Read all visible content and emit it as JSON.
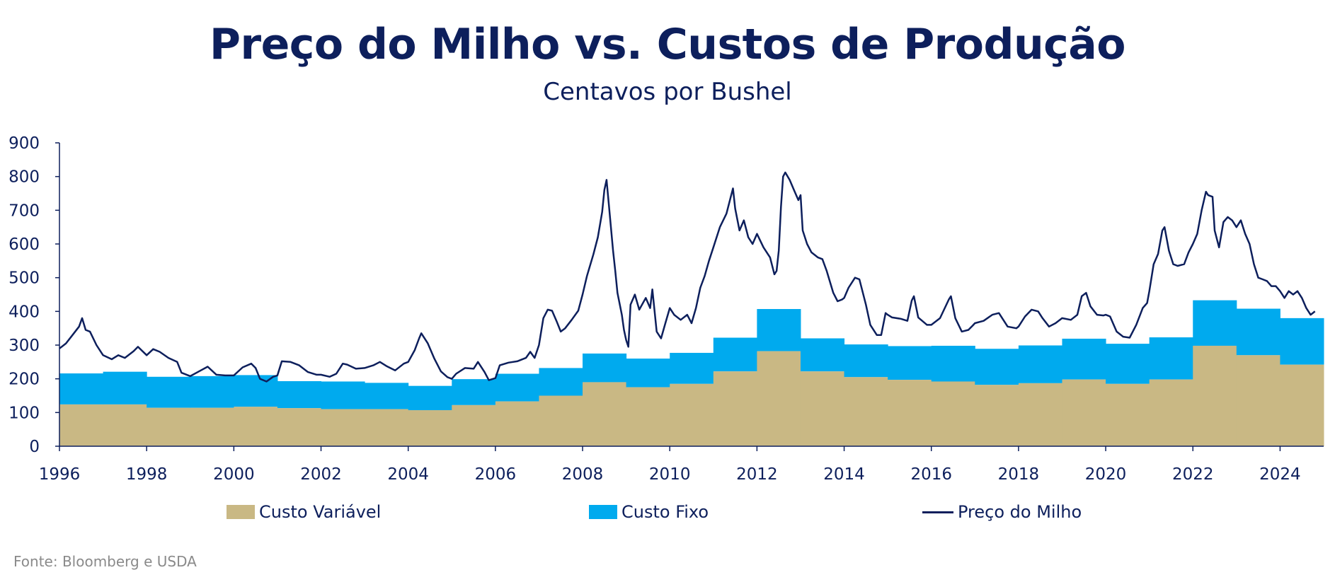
{
  "title": "Preço do Milho vs. Custos de Produção",
  "subtitle": "Centavos por Bushel",
  "source": "Fonte: Bloomberg e USDA",
  "colors": {
    "variable_cost": "#c9b884",
    "fixed_cost": "#00aaee",
    "price_line": "#0d1f5c",
    "text": "#0d1f5c",
    "axis": "#0d1f5c"
  },
  "chart_data": {
    "type": "area",
    "title": "Preço do Milho vs. Custos de Produção",
    "subtitle": "Centavos por Bushel",
    "xlabel": "",
    "ylabel": "",
    "xlim": [
      1996,
      2025
    ],
    "ylim": [
      0,
      900
    ],
    "yticks": [
      0,
      100,
      200,
      300,
      400,
      500,
      600,
      700,
      800,
      900
    ],
    "xticks": [
      "1996",
      "1998",
      "2000",
      "2002",
      "2004",
      "2006",
      "2008",
      "2010",
      "2012",
      "2014",
      "2016",
      "2018",
      "2020",
      "2022",
      "2024"
    ],
    "grid": false,
    "legend_position": "bottom",
    "legend": [
      "Custo Variável",
      "Custo Fixo",
      "Preço do Milho"
    ],
    "years": [
      1996,
      1997,
      1998,
      1999,
      2000,
      2001,
      2002,
      2003,
      2004,
      2005,
      2006,
      2007,
      2008,
      2009,
      2010,
      2011,
      2012,
      2013,
      2014,
      2015,
      2016,
      2017,
      2018,
      2019,
      2020,
      2021,
      2022,
      2023,
      2024
    ],
    "series": [
      {
        "name": "Custo Variável",
        "kind": "stacked-area-step",
        "values": [
          124,
          124,
          114,
          114,
          117,
          113,
          110,
          110,
          107,
          122,
          133,
          150,
          190,
          175,
          185,
          222,
          282,
          222,
          205,
          197,
          192,
          182,
          187,
          198,
          185,
          198,
          298,
          270,
          242
        ]
      },
      {
        "name": "Custo Fixo",
        "kind": "stacked-area-step",
        "values": [
          92,
          97,
          92,
          94,
          94,
          80,
          82,
          78,
          72,
          77,
          82,
          82,
          85,
          85,
          92,
          100,
          125,
          98,
          97,
          100,
          106,
          107,
          112,
          121,
          119,
          125,
          135,
          138,
          138
        ]
      },
      {
        "name": "Preço do Milho",
        "kind": "line",
        "points": [
          [
            1996.0,
            290
          ],
          [
            1996.15,
            305
          ],
          [
            1996.3,
            330
          ],
          [
            1996.45,
            355
          ],
          [
            1996.52,
            380
          ],
          [
            1996.6,
            345
          ],
          [
            1996.7,
            340
          ],
          [
            1996.85,
            300
          ],
          [
            1997.0,
            270
          ],
          [
            1997.2,
            258
          ],
          [
            1997.35,
            270
          ],
          [
            1997.5,
            262
          ],
          [
            1997.7,
            282
          ],
          [
            1997.8,
            295
          ],
          [
            1998.0,
            270
          ],
          [
            1998.15,
            288
          ],
          [
            1998.3,
            280
          ],
          [
            1998.5,
            262
          ],
          [
            1998.7,
            250
          ],
          [
            1998.8,
            218
          ],
          [
            1999.0,
            208
          ],
          [
            1999.2,
            222
          ],
          [
            1999.4,
            236
          ],
          [
            1999.6,
            212
          ],
          [
            1999.8,
            210
          ],
          [
            2000.0,
            210
          ],
          [
            2000.2,
            234
          ],
          [
            2000.4,
            245
          ],
          [
            2000.5,
            232
          ],
          [
            2000.6,
            200
          ],
          [
            2000.75,
            192
          ],
          [
            2000.9,
            206
          ],
          [
            2001.0,
            210
          ],
          [
            2001.1,
            252
          ],
          [
            2001.3,
            250
          ],
          [
            2001.5,
            240
          ],
          [
            2001.7,
            220
          ],
          [
            2001.9,
            212
          ],
          [
            2002.0,
            212
          ],
          [
            2002.2,
            206
          ],
          [
            2002.35,
            215
          ],
          [
            2002.5,
            245
          ],
          [
            2002.6,
            242
          ],
          [
            2002.8,
            230
          ],
          [
            2003.0,
            232
          ],
          [
            2003.2,
            240
          ],
          [
            2003.35,
            250
          ],
          [
            2003.5,
            238
          ],
          [
            2003.7,
            225
          ],
          [
            2003.9,
            245
          ],
          [
            2004.0,
            250
          ],
          [
            2004.15,
            285
          ],
          [
            2004.25,
            320
          ],
          [
            2004.3,
            335
          ],
          [
            2004.45,
            305
          ],
          [
            2004.6,
            260
          ],
          [
            2004.75,
            222
          ],
          [
            2004.9,
            205
          ],
          [
            2005.0,
            200
          ],
          [
            2005.1,
            215
          ],
          [
            2005.3,
            232
          ],
          [
            2005.5,
            230
          ],
          [
            2005.6,
            250
          ],
          [
            2005.75,
            220
          ],
          [
            2005.85,
            196
          ],
          [
            2006.0,
            202
          ],
          [
            2006.1,
            240
          ],
          [
            2006.3,
            248
          ],
          [
            2006.5,
            252
          ],
          [
            2006.7,
            262
          ],
          [
            2006.8,
            280
          ],
          [
            2006.9,
            262
          ],
          [
            2007.0,
            300
          ],
          [
            2007.1,
            380
          ],
          [
            2007.2,
            405
          ],
          [
            2007.3,
            402
          ],
          [
            2007.4,
            372
          ],
          [
            2007.5,
            340
          ],
          [
            2007.6,
            350
          ],
          [
            2007.75,
            375
          ],
          [
            2007.9,
            402
          ],
          [
            2008.0,
            450
          ],
          [
            2008.1,
            505
          ],
          [
            2008.25,
            570
          ],
          [
            2008.35,
            620
          ],
          [
            2008.45,
            695
          ],
          [
            2008.5,
            760
          ],
          [
            2008.55,
            790
          ],
          [
            2008.6,
            720
          ],
          [
            2008.7,
            580
          ],
          [
            2008.75,
            520
          ],
          [
            2008.8,
            455
          ],
          [
            2008.9,
            390
          ],
          [
            2008.95,
            345
          ],
          [
            2009.0,
            315
          ],
          [
            2009.05,
            295
          ],
          [
            2009.1,
            420
          ],
          [
            2009.2,
            450
          ],
          [
            2009.3,
            405
          ],
          [
            2009.45,
            440
          ],
          [
            2009.55,
            410
          ],
          [
            2009.6,
            465
          ],
          [
            2009.7,
            340
          ],
          [
            2009.8,
            320
          ],
          [
            2009.9,
            365
          ],
          [
            2010.0,
            410
          ],
          [
            2010.1,
            390
          ],
          [
            2010.25,
            375
          ],
          [
            2010.4,
            390
          ],
          [
            2010.5,
            365
          ],
          [
            2010.6,
            410
          ],
          [
            2010.7,
            470
          ],
          [
            2010.8,
            505
          ],
          [
            2010.9,
            550
          ],
          [
            2011.0,
            590
          ],
          [
            2011.15,
            650
          ],
          [
            2011.3,
            690
          ],
          [
            2011.4,
            740
          ],
          [
            2011.45,
            765
          ],
          [
            2011.5,
            705
          ],
          [
            2011.6,
            640
          ],
          [
            2011.7,
            670
          ],
          [
            2011.8,
            620
          ],
          [
            2011.9,
            600
          ],
          [
            2012.0,
            630
          ],
          [
            2012.15,
            590
          ],
          [
            2012.3,
            560
          ],
          [
            2012.4,
            510
          ],
          [
            2012.45,
            520
          ],
          [
            2012.5,
            580
          ],
          [
            2012.55,
            710
          ],
          [
            2012.6,
            800
          ],
          [
            2012.65,
            812
          ],
          [
            2012.75,
            790
          ],
          [
            2012.85,
            760
          ],
          [
            2012.95,
            730
          ],
          [
            2013.0,
            745
          ],
          [
            2013.05,
            640
          ],
          [
            2013.15,
            600
          ],
          [
            2013.25,
            575
          ],
          [
            2013.4,
            560
          ],
          [
            2013.5,
            555
          ],
          [
            2013.6,
            520
          ],
          [
            2013.75,
            455
          ],
          [
            2013.85,
            430
          ],
          [
            2013.95,
            435
          ],
          [
            2014.0,
            440
          ],
          [
            2014.1,
            470
          ],
          [
            2014.25,
            500
          ],
          [
            2014.35,
            495
          ],
          [
            2014.5,
            420
          ],
          [
            2014.6,
            360
          ],
          [
            2014.75,
            330
          ],
          [
            2014.85,
            330
          ],
          [
            2014.95,
            395
          ],
          [
            2015.0,
            390
          ],
          [
            2015.1,
            382
          ],
          [
            2015.3,
            378
          ],
          [
            2015.45,
            372
          ],
          [
            2015.55,
            432
          ],
          [
            2015.6,
            445
          ],
          [
            2015.7,
            382
          ],
          [
            2015.9,
            360
          ],
          [
            2016.0,
            360
          ],
          [
            2016.2,
            380
          ],
          [
            2016.4,
            435
          ],
          [
            2016.45,
            445
          ],
          [
            2016.55,
            380
          ],
          [
            2016.7,
            340
          ],
          [
            2016.85,
            345
          ],
          [
            2016.95,
            358
          ],
          [
            2017.0,
            365
          ],
          [
            2017.2,
            372
          ],
          [
            2017.4,
            390
          ],
          [
            2017.55,
            395
          ],
          [
            2017.75,
            355
          ],
          [
            2017.95,
            350
          ],
          [
            2018.0,
            355
          ],
          [
            2018.15,
            385
          ],
          [
            2018.3,
            405
          ],
          [
            2018.45,
            400
          ],
          [
            2018.55,
            380
          ],
          [
            2018.7,
            355
          ],
          [
            2018.85,
            365
          ],
          [
            2018.95,
            375
          ],
          [
            2019.0,
            380
          ],
          [
            2019.2,
            375
          ],
          [
            2019.35,
            390
          ],
          [
            2019.45,
            445
          ],
          [
            2019.55,
            455
          ],
          [
            2019.65,
            415
          ],
          [
            2019.8,
            390
          ],
          [
            2019.95,
            388
          ],
          [
            2020.0,
            390
          ],
          [
            2020.1,
            385
          ],
          [
            2020.25,
            340
          ],
          [
            2020.4,
            325
          ],
          [
            2020.55,
            322
          ],
          [
            2020.7,
            360
          ],
          [
            2020.85,
            410
          ],
          [
            2020.95,
            425
          ],
          [
            2021.0,
            460
          ],
          [
            2021.1,
            540
          ],
          [
            2021.2,
            570
          ],
          [
            2021.3,
            640
          ],
          [
            2021.35,
            650
          ],
          [
            2021.45,
            580
          ],
          [
            2021.55,
            540
          ],
          [
            2021.65,
            535
          ],
          [
            2021.8,
            540
          ],
          [
            2021.9,
            575
          ],
          [
            2022.0,
            600
          ],
          [
            2022.1,
            630
          ],
          [
            2022.2,
            700
          ],
          [
            2022.3,
            755
          ],
          [
            2022.35,
            745
          ],
          [
            2022.45,
            740
          ],
          [
            2022.5,
            640
          ],
          [
            2022.6,
            590
          ],
          [
            2022.7,
            665
          ],
          [
            2022.8,
            680
          ],
          [
            2022.9,
            670
          ],
          [
            2023.0,
            650
          ],
          [
            2023.1,
            670
          ],
          [
            2023.2,
            630
          ],
          [
            2023.3,
            600
          ],
          [
            2023.4,
            540
          ],
          [
            2023.5,
            500
          ],
          [
            2023.6,
            495
          ],
          [
            2023.7,
            490
          ],
          [
            2023.8,
            475
          ],
          [
            2023.9,
            475
          ],
          [
            2024.0,
            460
          ],
          [
            2024.1,
            440
          ],
          [
            2024.2,
            460
          ],
          [
            2024.3,
            450
          ],
          [
            2024.4,
            460
          ],
          [
            2024.5,
            440
          ],
          [
            2024.6,
            410
          ],
          [
            2024.7,
            390
          ],
          [
            2024.75,
            395
          ],
          [
            2024.8,
            400
          ]
        ]
      }
    ]
  }
}
